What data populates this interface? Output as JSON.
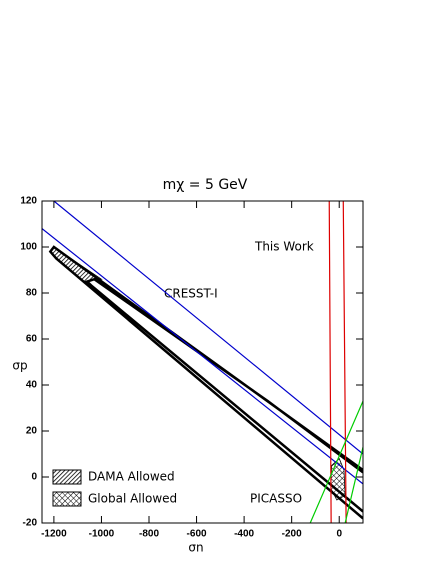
{
  "chart_data": {
    "type": "line",
    "title": "mχ = 5 GeV",
    "x_label": "σn",
    "y_label": "σp",
    "xlim": [
      -1250,
      100
    ],
    "ylim": [
      -20,
      120
    ],
    "xticks": [
      -1200,
      -1000,
      -800,
      -600,
      -400,
      -200,
      0
    ],
    "yticks": [
      -20,
      0,
      20,
      40,
      60,
      80,
      100,
      120
    ],
    "grid": false,
    "annotations": [
      "CRESST-I",
      "This Work",
      "PICASSO"
    ],
    "series": [
      {
        "name": "DAMA Allowed",
        "style": "hatch",
        "color": "#000000",
        "x": [
          -1215,
          -1200,
          -1000,
          -1030,
          -1060,
          -1040,
          -1190
        ],
        "values": [
          98,
          100,
          86,
          86,
          85,
          82,
          95
        ]
      },
      {
        "name": "Global Allowed",
        "style": "crosshatch",
        "color": "#000000",
        "x": [
          -32,
          0,
          20,
          25,
          -10,
          -35
        ],
        "values": [
          5,
          8,
          3,
          -8,
          -10,
          -5
        ]
      },
      {
        "style": "line",
        "color": "#000000",
        "x": [
          100,
          -1200,
          -1215,
          -1190,
          100,
          null,
          100,
          -1040,
          -1060,
          -1030,
          -300,
          100
        ],
        "values": [
          3,
          100,
          98,
          95,
          -18,
          null,
          -15,
          83,
          85,
          86,
          33,
          2
        ]
      },
      {
        "style": "line",
        "color": "#0000cc",
        "x": [
          -1200,
          100,
          null,
          -1250,
          100
        ],
        "values": [
          120,
          10,
          null,
          108,
          -3
        ]
      },
      {
        "style": "line",
        "color": "#dd0000",
        "x": [
          -42,
          -34,
          null,
          17,
          29
        ],
        "values": [
          120,
          -20,
          null,
          120,
          -20
        ]
      },
      {
        "style": "line",
        "color": "#00cc00",
        "x": [
          -122,
          100,
          null,
          25,
          100
        ],
        "values": [
          -20,
          33,
          null,
          -20,
          13
        ]
      }
    ]
  }
}
